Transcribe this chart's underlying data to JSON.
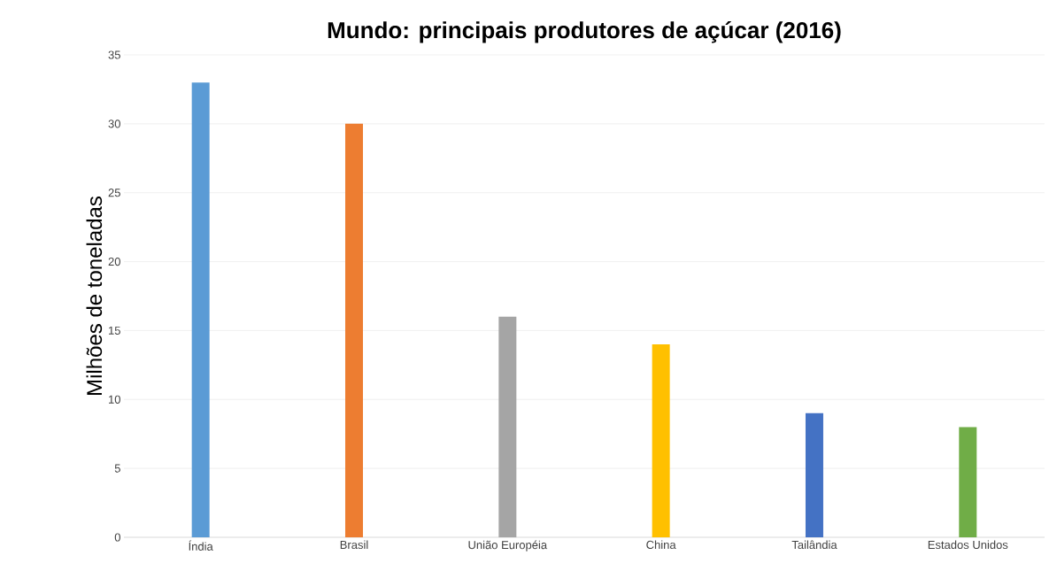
{
  "chart_data": {
    "type": "bar",
    "title": "Mundo: principais produtores de açúcar (2016)",
    "ylabel": "Milhões de toneladas",
    "categories": [
      "Índia",
      "Brasil",
      "União Européia",
      "China",
      "Tailândia",
      "Estados Unidos"
    ],
    "values": [
      33,
      30,
      16,
      14,
      9,
      8
    ],
    "colors": [
      "#5b9bd5",
      "#ed7d31",
      "#a5a5a5",
      "#ffc000",
      "#4472c4",
      "#70ad47"
    ],
    "ylim": [
      0,
      35
    ],
    "yticks": [
      0,
      5,
      10,
      15,
      20,
      25,
      30,
      35
    ],
    "grid": "y"
  }
}
